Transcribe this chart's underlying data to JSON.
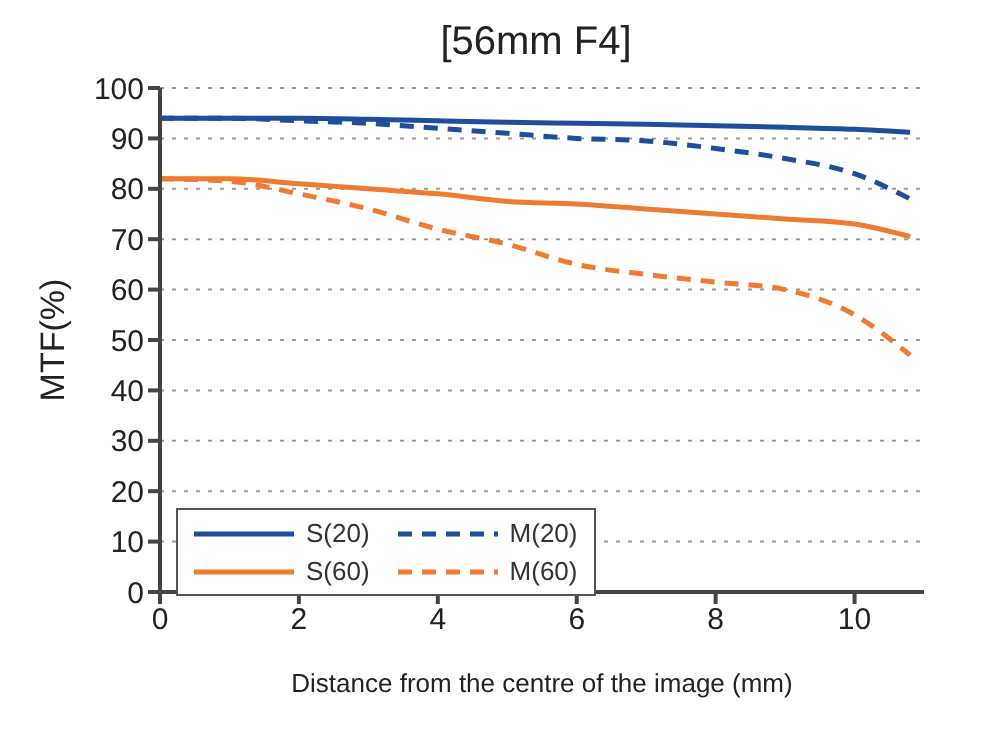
{
  "chart_data": {
    "type": "line",
    "title": "[56mm F4]",
    "xlabel": "Distance from the centre of the image (mm)",
    "ylabel": "MTF(%)",
    "x": [
      0,
      1,
      2,
      3,
      4,
      5,
      6,
      7,
      8,
      9,
      10,
      10.8
    ],
    "series": [
      {
        "name": "S(20)",
        "color": "#1f4e9c",
        "line_style": "solid",
        "values": [
          94,
          94,
          94,
          93.8,
          93.5,
          93.2,
          93,
          92.8,
          92.5,
          92.2,
          91.8,
          91.2
        ]
      },
      {
        "name": "M(20)",
        "color": "#1f4e9c",
        "line_style": "dashed",
        "values": [
          94,
          94,
          93.5,
          93,
          92,
          91,
          90,
          89.5,
          88,
          86,
          83,
          78
        ]
      },
      {
        "name": "S(60)",
        "color": "#ee7b30",
        "line_style": "solid",
        "values": [
          82,
          82,
          81,
          80,
          79,
          77.5,
          77,
          76,
          75,
          74,
          73,
          70.5
        ]
      },
      {
        "name": "M(60)",
        "color": "#ee7b30",
        "line_style": "dashed",
        "values": [
          82,
          81.5,
          79,
          76,
          72,
          69,
          65,
          63,
          61.5,
          60,
          55,
          47
        ]
      }
    ],
    "xlim": [
      0,
      11
    ],
    "xticks": [
      0,
      2,
      4,
      6,
      8,
      10
    ],
    "ylim": [
      0,
      100
    ],
    "yticks": [
      0,
      10,
      20,
      30,
      40,
      50,
      60,
      70,
      80,
      90,
      100
    ],
    "grid": "y",
    "legend": "bottom left",
    "marker": "none"
  }
}
